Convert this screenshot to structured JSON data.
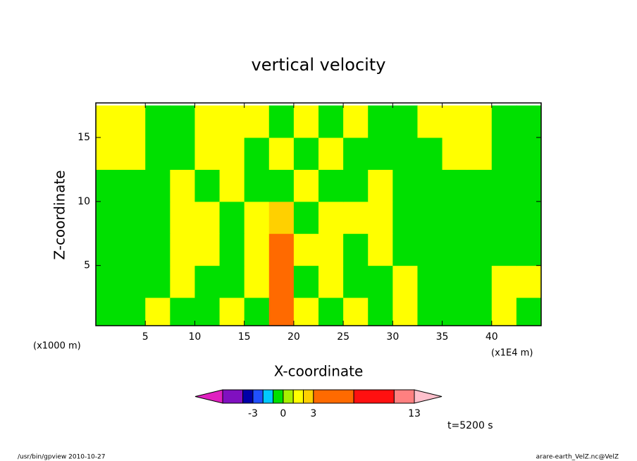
{
  "chart_data": {
    "type": "contourf",
    "title": "vertical velocity",
    "xlabel": "X-coordinate",
    "ylabel": "Z-coordinate",
    "xunit": "(x1E4 m)",
    "yunit": "(x1000 m)",
    "time_label": "t=5200 s",
    "footer_left": "/usr/bin/gpview  2010-10-27",
    "footer_right": "arare-earth_VelZ.nc@VelZ",
    "xlim": [
      0,
      45
    ],
    "ylim": [
      0.3,
      17.7
    ],
    "xticks": [
      5,
      10,
      15,
      20,
      25,
      30,
      35,
      40
    ],
    "yticks": [
      5,
      10,
      15
    ],
    "x": [
      1.25,
      3.75,
      6.25,
      8.75,
      11.25,
      13.75,
      16.25,
      18.75,
      21.25,
      23.75,
      26.25,
      28.75,
      31.25,
      33.75,
      36.25,
      38.75,
      41.25,
      43.75
    ],
    "y": [
      1.25,
      3.75,
      6.25,
      8.75,
      11.25,
      13.75,
      16.25
    ],
    "z": [
      [
        -0.5,
        -0.5,
        1.5,
        -0.5,
        -0.5,
        1.5,
        -0.5,
        5,
        1.5,
        -0.5,
        1.5,
        -0.5,
        1.5,
        -0.5,
        -0.5,
        -0.5,
        1.5,
        -0.5
      ],
      [
        -0.5,
        -0.5,
        -0.5,
        1.5,
        -0.5,
        -0.5,
        1.5,
        5,
        -0.5,
        1.5,
        -0.5,
        -0.5,
        1.5,
        -0.5,
        -0.5,
        -0.5,
        1.5,
        1.5
      ],
      [
        -0.5,
        -0.5,
        -0.5,
        1.5,
        1.5,
        -0.5,
        1.5,
        5,
        1.5,
        1.5,
        -0.5,
        1.5,
        -0.5,
        -0.5,
        -0.5,
        -0.5,
        -0.5,
        -0.5
      ],
      [
        -0.5,
        -0.5,
        -0.5,
        1.5,
        1.5,
        -0.5,
        1.5,
        2.5,
        -0.5,
        1.5,
        1.5,
        1.5,
        -0.5,
        -0.5,
        -0.5,
        -0.5,
        -0.5,
        -0.5
      ],
      [
        -0.5,
        -0.5,
        -0.5,
        1.5,
        -0.5,
        1.5,
        -0.5,
        -0.5,
        1.5,
        -0.5,
        -0.5,
        1.5,
        -0.5,
        -0.5,
        -0.5,
        -0.5,
        -0.5,
        -0.5
      ],
      [
        1.5,
        1.5,
        -0.5,
        -0.5,
        1.5,
        1.5,
        -0.5,
        1.5,
        -0.5,
        1.5,
        -0.5,
        -0.5,
        -0.5,
        -0.5,
        1.5,
        1.5,
        -0.5,
        -0.5
      ],
      [
        1.5,
        1.5,
        -0.5,
        -0.5,
        1.5,
        1.5,
        1.5,
        -0.5,
        1.5,
        -0.5,
        1.5,
        -0.5,
        -0.5,
        1.5,
        1.5,
        1.5,
        -0.5,
        -0.5
      ]
    ],
    "levels": [
      -6,
      -4,
      -3,
      -2,
      -1,
      0,
      1,
      2,
      3,
      7,
      11,
      13
    ],
    "level_ticks": [
      -3,
      0,
      3,
      13
    ],
    "colors": [
      "#e020c0",
      "#8010c0",
      "#0000a8",
      "#2050ff",
      "#00c8ff",
      "#00e000",
      "#a8f000",
      "#ffff00",
      "#ffd000",
      "#ff6a00",
      "#ff1010",
      "#ff8080",
      "#ffc0cc"
    ]
  }
}
